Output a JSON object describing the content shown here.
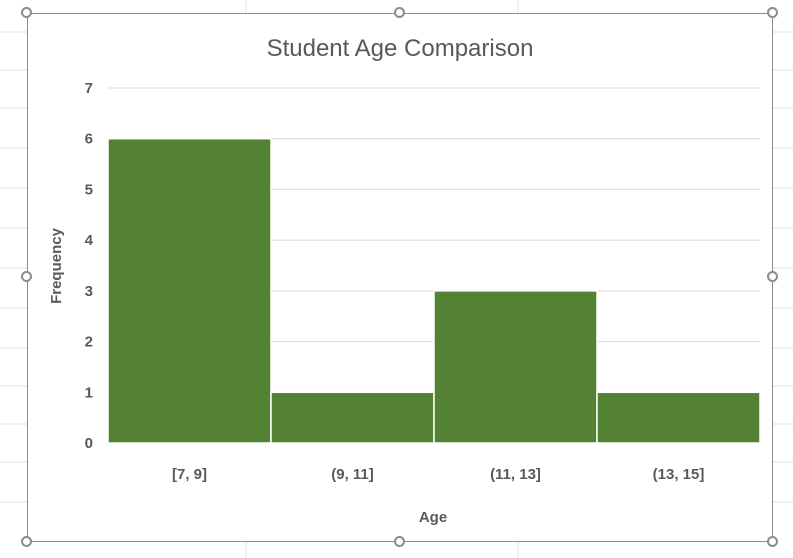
{
  "chart_data": {
    "type": "bar",
    "title": "Student Age Comparison",
    "xlabel": "Age",
    "ylabel": "Frequency",
    "categories": [
      "[7, 9]",
      "(9, 11]",
      "(11, 13]",
      "(13, 15]"
    ],
    "values": [
      6,
      1,
      3,
      1
    ],
    "ylim": [
      0,
      7
    ],
    "yticks": [
      0,
      1,
      2,
      3,
      4,
      5,
      6,
      7
    ],
    "grid": true,
    "legend": "none",
    "colors": {
      "bar": "#548235",
      "bar_edge": "#ffffff",
      "gridline": "#d9d9d9",
      "text": "#595959",
      "frame": "#8c8c8c",
      "sheet_gridline": "#e1e1e1"
    }
  }
}
